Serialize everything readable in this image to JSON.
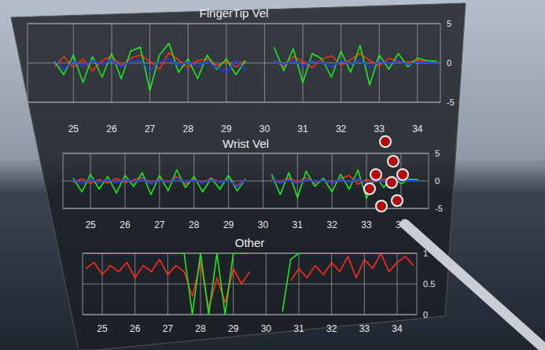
{
  "chart_data": [
    {
      "type": "line",
      "title": "FingerTip Vel",
      "grid": true,
      "x": [
        24.5,
        24.75,
        25,
        25.25,
        25.5,
        25.75,
        26,
        26.25,
        26.5,
        26.75,
        27,
        27.25,
        27.5,
        27.75,
        28,
        28.25,
        28.5,
        28.75,
        29,
        29.25,
        29.5,
        29.75,
        30,
        30.25,
        30.5,
        30.75,
        31,
        31.25,
        31.5,
        31.75,
        32,
        32.25,
        32.5,
        32.75,
        33,
        33.25,
        33.5,
        33.75,
        34,
        34.25,
        34.5
      ],
      "xlim": [
        23.8,
        34.6
      ],
      "xticks": [
        25,
        26,
        27,
        28,
        29,
        30,
        31,
        32,
        33,
        34
      ],
      "ylim": [
        -5,
        5
      ],
      "yticks": [
        -5,
        0,
        5
      ],
      "series": [
        {
          "color": "#ff2a1a",
          "values": [
            -0.5,
            0.8,
            -0.6,
            0.5,
            -1.0,
            0.3,
            0.9,
            -0.4,
            0.6,
            1.0,
            0.2,
            -0.8,
            1.3,
            0.4,
            -0.6,
            0.3,
            0.5,
            -0.3,
            0.2,
            -0.5,
            0.3,
            null,
            null,
            0.3,
            -0.5,
            0.8,
            0.2,
            -0.6,
            0.5,
            0.9,
            -0.3,
            0.4,
            1.2,
            0.3,
            -0.4,
            0.6,
            0.2,
            0.1,
            0.3,
            0.2,
            0.1
          ]
        },
        {
          "color": "#22e622",
          "values": [
            0.2,
            -1.5,
            1.0,
            -2.5,
            0.8,
            -1.8,
            1.2,
            -2.0,
            1.5,
            2.0,
            -3.5,
            1.0,
            2.5,
            -1.2,
            0.5,
            -2.0,
            1.0,
            -0.8,
            0.5,
            -1.5,
            0.3,
            null,
            null,
            2.0,
            -1.0,
            1.8,
            -2.5,
            1.2,
            0.5,
            -1.8,
            1.5,
            -1.2,
            2.2,
            -2.8,
            1.0,
            -0.8,
            1.2,
            -0.5,
            0.6,
            0.3,
            0.2
          ]
        },
        {
          "color": "#1a3cff",
          "values": [
            0.3,
            -0.8,
            0.2,
            -0.4,
            0.3,
            -0.2,
            0.4,
            -0.5,
            0.2,
            0.3,
            -1.0,
            0.2,
            0.5,
            -0.3,
            0.1,
            -0.4,
            0.2,
            -0.6,
            -1.2,
            0.3,
            -1.0,
            null,
            null,
            0.2,
            -0.2,
            0.3,
            -0.4,
            0.2,
            0.1,
            -0.5,
            0.3,
            -0.2,
            0.4,
            -0.6,
            0.2,
            -0.1,
            0.3,
            -0.2,
            0.1,
            0.1,
            0.0
          ]
        }
      ]
    },
    {
      "type": "line",
      "title": "Wrist Vel",
      "grid": true,
      "x": [
        24.5,
        24.75,
        25,
        25.25,
        25.5,
        25.75,
        26,
        26.25,
        26.5,
        26.75,
        27,
        27.25,
        27.5,
        27.75,
        28,
        28.25,
        28.5,
        28.75,
        29,
        29.25,
        29.5,
        29.75,
        30,
        30.25,
        30.5,
        30.75,
        31,
        31.25,
        31.5,
        31.75,
        32,
        32.25,
        32.5,
        32.75,
        33,
        33.25,
        33.5,
        33.75,
        34,
        34.25,
        34.5
      ],
      "xlim": [
        24.2,
        34.8
      ],
      "xticks": [
        25,
        26,
        27,
        28,
        29,
        30,
        31,
        32,
        33,
        34
      ],
      "ylim": [
        -5,
        5
      ],
      "yticks": [
        -5,
        0,
        5
      ],
      "series": [
        {
          "color": "#ff2a1a",
          "values": [
            -0.3,
            0.4,
            -0.5,
            0.3,
            -0.4,
            0.5,
            -0.3,
            0.2,
            0.6,
            -0.5,
            0.4,
            -0.2,
            0.8,
            -0.6,
            0.3,
            -0.4,
            0.5,
            -0.3,
            0.2,
            -0.8,
            0.3,
            null,
            null,
            0.4,
            -0.3,
            0.5,
            -0.2,
            0.6,
            -0.4,
            0.3,
            -0.5,
            0.4,
            1.0,
            -0.6,
            0.3,
            -0.2,
            0.4,
            0.2,
            0.1,
            0.2,
            0.1
          ]
        },
        {
          "color": "#22e622",
          "values": [
            0.5,
            -2.0,
            1.2,
            -1.5,
            0.8,
            -2.2,
            1.0,
            -1.0,
            1.5,
            -2.5,
            1.0,
            -1.8,
            2.0,
            -1.2,
            0.8,
            -2.0,
            0.5,
            -1.5,
            1.0,
            -1.8,
            0.4,
            null,
            null,
            1.2,
            -2.5,
            1.5,
            -3.0,
            1.8,
            -1.0,
            0.5,
            -2.0,
            1.2,
            -1.5,
            2.0,
            -3.2,
            1.0,
            -1.2,
            0.8,
            -0.5,
            0.3,
            0.2
          ]
        },
        {
          "color": "#1a3cff",
          "values": [
            0.2,
            -0.5,
            0.3,
            -0.3,
            0.2,
            -0.4,
            0.3,
            -0.2,
            0.4,
            -0.6,
            0.2,
            -0.3,
            0.5,
            -0.2,
            0.1,
            -0.4,
            0.2,
            -0.3,
            0.1,
            -1.0,
            0.2,
            null,
            null,
            0.3,
            -0.4,
            0.2,
            -0.5,
            0.3,
            -0.2,
            0.1,
            -0.4,
            0.3,
            -0.3,
            0.4,
            -0.6,
            0.2,
            -0.2,
            0.2,
            -0.1,
            0.1,
            0.0
          ]
        }
      ]
    },
    {
      "type": "line",
      "title": "Other",
      "grid": true,
      "x": [
        24.5,
        24.75,
        25,
        25.25,
        25.5,
        25.75,
        26,
        26.25,
        26.5,
        26.75,
        27,
        27.25,
        27.5,
        27.75,
        28,
        28.25,
        28.5,
        28.75,
        29,
        29.25,
        29.5,
        29.75,
        30,
        30.25,
        30.5,
        30.75,
        31,
        31.25,
        31.5,
        31.75,
        32,
        32.25,
        32.5,
        32.75,
        33,
        33.25,
        33.5,
        33.75,
        34,
        34.25,
        34.5
      ],
      "xlim": [
        24.4,
        34.6
      ],
      "xticks": [
        25,
        26,
        27,
        28,
        29,
        30,
        31,
        32,
        33,
        34
      ],
      "ylim": [
        0,
        1
      ],
      "yticks": [
        0,
        0.5,
        1
      ],
      "series": [
        {
          "color": "#ff2a1a",
          "values": [
            0.75,
            0.85,
            0.65,
            0.8,
            0.7,
            0.85,
            0.6,
            0.8,
            0.7,
            0.9,
            0.65,
            0.8,
            0.7,
            0.3,
            0.85,
            0.1,
            0.6,
            0.2,
            0.75,
            0.5,
            0.7,
            null,
            null,
            null,
            null,
            0.55,
            0.75,
            0.6,
            0.8,
            0.65,
            0.85,
            0.7,
            0.95,
            0.6,
            0.9,
            0.75,
            1.0,
            0.7,
            0.85,
            0.95,
            0.8
          ]
        },
        {
          "color": "#22e622",
          "values": [
            1,
            1,
            1,
            1,
            1,
            1,
            1,
            1,
            1,
            1,
            1,
            1,
            1,
            0,
            1,
            0,
            1,
            0,
            1,
            1,
            1,
            null,
            null,
            null,
            0.05,
            0.9,
            1,
            1,
            1,
            1,
            1,
            1,
            1,
            1,
            1,
            1,
            1,
            1,
            1,
            1,
            1
          ]
        }
      ]
    }
  ]
}
